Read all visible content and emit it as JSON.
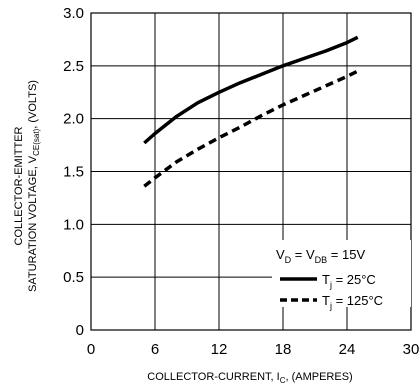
{
  "chart_data": {
    "type": "line",
    "xlabel": {
      "main": "COLLECTOR-CURRENT, I",
      "sub": "C",
      "tail": ", (AMPERES)"
    },
    "ylabel": {
      "line1": "COLLECTOR-EMITTER",
      "line2_main": "SATURATION VOLTAGE, V",
      "line2_sub": "CE(sat)",
      "line2_tail": ", (VOLTS)"
    },
    "xlim": [
      0,
      30
    ],
    "ylim": [
      0,
      3.0
    ],
    "x_ticks": [
      {
        "v": 0,
        "label": "0"
      },
      {
        "v": 6,
        "label": "6"
      },
      {
        "v": 12,
        "label": "12"
      },
      {
        "v": 18,
        "label": "18"
      },
      {
        "v": 24,
        "label": "24"
      },
      {
        "v": 30,
        "label": "30"
      }
    ],
    "y_ticks": [
      {
        "v": 0,
        "label": "0"
      },
      {
        "v": 0.5,
        "label": "0.5"
      },
      {
        "v": 1.0,
        "label": "1.0"
      },
      {
        "v": 1.5,
        "label": "1.5"
      },
      {
        "v": 2.0,
        "label": "2.0"
      },
      {
        "v": 2.5,
        "label": "2.5"
      },
      {
        "v": 3.0,
        "label": "3.0"
      }
    ],
    "grid": true,
    "legend": {
      "position": "bottom-right",
      "condition": {
        "a": "V",
        "a_sub": "D",
        "mid": " = V",
        "b_sub": "DB",
        "tail": " = 15V"
      }
    },
    "series": [
      {
        "label_main": "T",
        "label_sub": "j",
        "label_tail": " = 25°C",
        "style": "solid",
        "color": "#000000",
        "x": [
          5,
          6,
          8,
          10,
          12,
          14,
          16,
          18,
          20,
          22,
          24,
          25
        ],
        "y": [
          1.77,
          1.86,
          2.02,
          2.15,
          2.25,
          2.34,
          2.42,
          2.5,
          2.57,
          2.64,
          2.72,
          2.77
        ]
      },
      {
        "label_main": "T",
        "label_sub": "j",
        "label_tail": " = 125°C",
        "style": "dashed",
        "color": "#000000",
        "x": [
          5,
          6,
          8,
          10,
          12,
          14,
          16,
          18,
          20,
          22,
          24,
          25
        ],
        "y": [
          1.36,
          1.44,
          1.59,
          1.71,
          1.82,
          1.92,
          2.03,
          2.13,
          2.22,
          2.31,
          2.4,
          2.45
        ]
      }
    ]
  }
}
